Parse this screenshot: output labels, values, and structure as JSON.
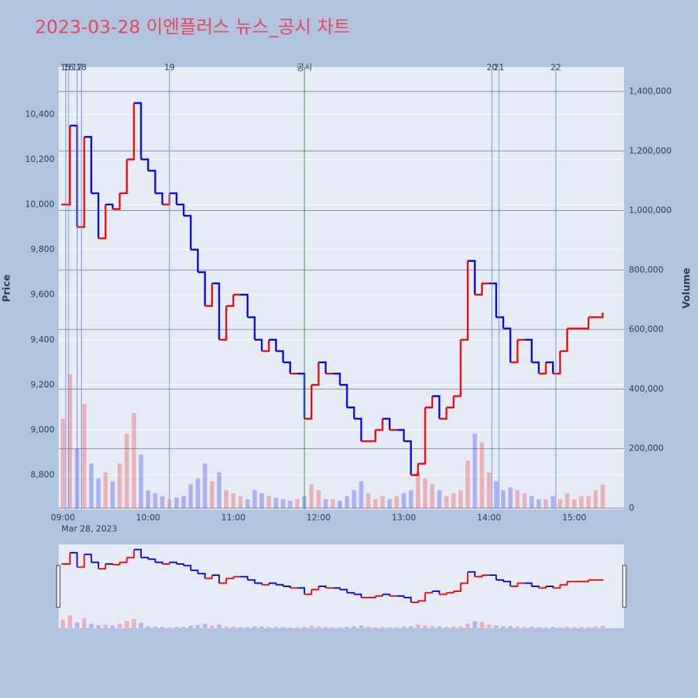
{
  "chart_data": {
    "type": "price-volume",
    "title": "2023-03-28 이엔플러스 뉴스_공시 차트",
    "title_color": "#e8475f",
    "x_sublabel": "Mar 28, 2023",
    "y_label": "Price",
    "y2_label": "Volume",
    "up_color": "#ff0000",
    "down_color": "#0000ff",
    "x": [
      "09:00",
      "09:05",
      "09:10",
      "09:15",
      "09:20",
      "09:25",
      "09:30",
      "09:35",
      "09:40",
      "09:45",
      "09:50",
      "09:55",
      "10:00",
      "10:05",
      "10:10",
      "10:15",
      "10:20",
      "10:25",
      "10:30",
      "10:35",
      "10:40",
      "10:45",
      "10:50",
      "10:55",
      "11:00",
      "11:05",
      "11:10",
      "11:15",
      "11:20",
      "11:25",
      "11:30",
      "11:35",
      "11:40",
      "11:45",
      "11:50",
      "11:55",
      "12:00",
      "12:05",
      "12:10",
      "12:15",
      "12:20",
      "12:25",
      "12:30",
      "12:35",
      "12:40",
      "12:45",
      "12:50",
      "12:55",
      "13:00",
      "13:05",
      "13:10",
      "13:15",
      "13:20",
      "13:25",
      "13:30",
      "13:35",
      "13:40",
      "13:45",
      "13:50",
      "13:55",
      "14:00",
      "14:05",
      "14:10",
      "14:15",
      "14:20",
      "14:25",
      "14:30",
      "14:35",
      "14:40",
      "14:45",
      "14:50",
      "14:55",
      "15:00",
      "15:05",
      "15:10",
      "15:15",
      "15:20"
    ],
    "series": [
      {
        "name": "Price",
        "values": [
          10000,
          10350,
          9900,
          10300,
          10050,
          9850,
          10000,
          9980,
          10050,
          10200,
          10450,
          10200,
          10150,
          10050,
          10000,
          10050,
          10000,
          9950,
          9800,
          9700,
          9550,
          9650,
          9400,
          9550,
          9600,
          9600,
          9500,
          9400,
          9350,
          9400,
          9350,
          9300,
          9250,
          9250,
          9050,
          9200,
          9300,
          9250,
          9250,
          9200,
          9100,
          9050,
          8950,
          8950,
          9000,
          9050,
          9000,
          9000,
          8950,
          8800,
          8850,
          9100,
          9150,
          9050,
          9100,
          9150,
          9400,
          9750,
          9600,
          9650,
          9650,
          9500,
          9450,
          9300,
          9400,
          9400,
          9300,
          9250,
          9300,
          9250,
          9350,
          9450,
          9450,
          9450,
          9500,
          9500,
          9520
        ]
      },
      {
        "name": "Volume",
        "axis": "y2",
        "values": [
          300000,
          450000,
          200000,
          350000,
          150000,
          100000,
          120000,
          90000,
          150000,
          250000,
          320000,
          180000,
          60000,
          50000,
          40000,
          30000,
          35000,
          40000,
          80000,
          100000,
          150000,
          90000,
          120000,
          60000,
          50000,
          40000,
          30000,
          60000,
          50000,
          40000,
          35000,
          30000,
          25000,
          30000,
          40000,
          80000,
          60000,
          30000,
          30000,
          25000,
          40000,
          60000,
          90000,
          50000,
          30000,
          40000,
          30000,
          40000,
          50000,
          60000,
          120000,
          100000,
          80000,
          60000,
          40000,
          50000,
          60000,
          160000,
          250000,
          220000,
          120000,
          90000,
          60000,
          70000,
          60000,
          50000,
          40000,
          30000,
          30000,
          40000,
          30000,
          50000,
          30000,
          40000,
          40000,
          60000,
          80000
        ]
      }
    ],
    "xlim": [
      "08:57",
      "15:35"
    ],
    "xticks": [
      "09:00",
      "10:00",
      "11:00",
      "12:00",
      "13:00",
      "14:00",
      "15:00"
    ],
    "ylim": [
      8647,
      10610
    ],
    "yticks": [
      {
        "value": 8800,
        "label": "8,800"
      },
      {
        "value": 9000,
        "label": "9,000"
      },
      {
        "value": 9200,
        "label": "9,200"
      },
      {
        "value": 9400,
        "label": "9,400"
      },
      {
        "value": 9600,
        "label": "9,600"
      },
      {
        "value": 9800,
        "label": "9,800"
      },
      {
        "value": 10000,
        "label": "10,000"
      },
      {
        "value": 10200,
        "label": "10,200"
      },
      {
        "value": 10400,
        "label": "10,400"
      }
    ],
    "y2lim": [
      -4700,
      1482000
    ],
    "y2ticks": [
      0,
      {
        "value": 200000,
        "label": "200,000"
      },
      {
        "value": 400000,
        "label": "400,000"
      },
      {
        "value": 600000,
        "label": "600,000"
      },
      {
        "value": 800000,
        "label": "800,000"
      },
      {
        "value": 1000000,
        "label": "1,000,000"
      },
      {
        "value": 1200000,
        "label": "1,200,000"
      },
      {
        "value": 1400000,
        "label": "1,400,000"
      }
    ],
    "events": [
      {
        "label": "15",
        "x": "09:02",
        "color": "#7090e8"
      },
      {
        "label": "16",
        "x": "09:04",
        "color": "#7090e8"
      },
      {
        "label": "17",
        "x": "09:10",
        "color": "#7090e8"
      },
      {
        "label": "18",
        "x": "09:13",
        "color": "#7090e8"
      },
      {
        "label": "19",
        "x": "10:15",
        "color": "#7090e8"
      },
      {
        "label": "공시",
        "x": "11:50",
        "color": "#2ca02c"
      },
      {
        "label": "20",
        "x": "14:02",
        "color": "#7090e8"
      },
      {
        "label": "21",
        "x": "14:07",
        "color": "#7090e8"
      },
      {
        "label": "22",
        "x": "14:47",
        "color": "#7090e8"
      }
    ],
    "grid": true
  }
}
